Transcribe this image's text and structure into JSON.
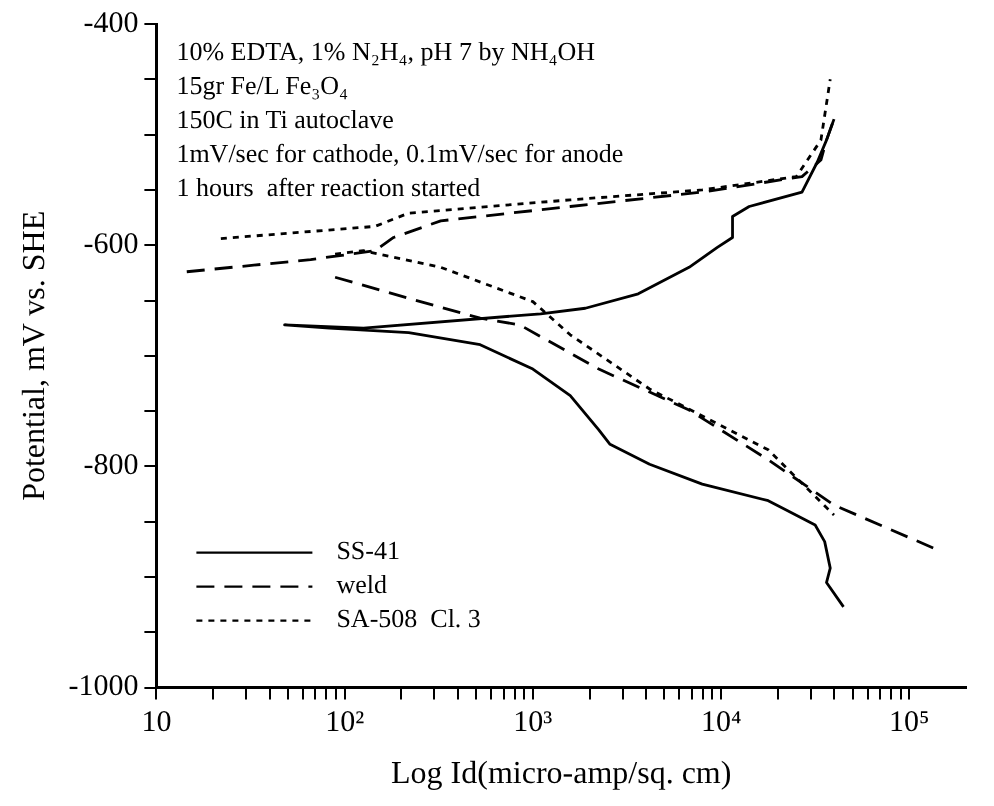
{
  "chart_data": {
    "type": "line",
    "xlabel": "Log Id(micro-amp/sq. cm)",
    "ylabel": "Potential, mV vs. SHE",
    "annotations": [
      "10% EDTA, 1% N₂H₄, pH 7 by NH₄OH",
      "15gr Fe/L Fe₃O₄",
      "150C in Ti autoclave",
      "1mV/sec for cathode, 0.1mV/sec for anode",
      "1 hours  after reaction started"
    ],
    "log": "x",
    "grid": false,
    "legend": "bottom left",
    "marker": "none",
    "xlim": [
      10,
      200000
    ],
    "ylim": [
      -1000,
      -400
    ],
    "xticks": [
      10,
      {
        "value": 20,
        "label": null
      },
      {
        "value": 30,
        "label": null
      },
      {
        "value": 40,
        "label": null
      },
      {
        "value": 50,
        "label": null
      },
      {
        "value": 60,
        "label": null
      },
      {
        "value": 70,
        "label": null
      },
      {
        "value": 80,
        "label": null
      },
      {
        "value": 90,
        "label": null
      },
      {
        "value": 100,
        "label": "10²"
      },
      {
        "value": 200,
        "label": null
      },
      {
        "value": 300,
        "label": null
      },
      {
        "value": 400,
        "label": null
      },
      {
        "value": 500,
        "label": null
      },
      {
        "value": 600,
        "label": null
      },
      {
        "value": 700,
        "label": null
      },
      {
        "value": 800,
        "label": null
      },
      {
        "value": 900,
        "label": null
      },
      {
        "value": 1000,
        "label": "10³"
      },
      {
        "value": 2000,
        "label": null
      },
      {
        "value": 3000,
        "label": null
      },
      {
        "value": 4000,
        "label": null
      },
      {
        "value": 5000,
        "label": null
      },
      {
        "value": 6000,
        "label": null
      },
      {
        "value": 7000,
        "label": null
      },
      {
        "value": 8000,
        "label": null
      },
      {
        "value": 9000,
        "label": null
      },
      {
        "value": 10000,
        "label": "10⁴"
      },
      {
        "value": 20000,
        "label": null
      },
      {
        "value": 30000,
        "label": null
      },
      {
        "value": 40000,
        "label": null
      },
      {
        "value": 50000,
        "label": null
      },
      {
        "value": 60000,
        "label": null
      },
      {
        "value": 70000,
        "label": null
      },
      {
        "value": 80000,
        "label": null
      },
      {
        "value": 90000,
        "label": null
      },
      {
        "value": 100000,
        "label": "10⁵"
      }
    ],
    "yticks": [
      -1000,
      {
        "value": -950,
        "label": null
      },
      {
        "value": -900,
        "label": null
      },
      {
        "value": -850,
        "label": null
      },
      -800,
      {
        "value": -750,
        "label": null
      },
      {
        "value": -700,
        "label": null
      },
      {
        "value": -650,
        "label": null
      },
      -600,
      {
        "value": -550,
        "label": null
      },
      {
        "value": -500,
        "label": null
      },
      {
        "value": -450,
        "label": null
      },
      -400
    ],
    "series": [
      {
        "name": "SS-41",
        "color": "#000000",
        "line_style": "solid",
        "x": [
          44700,
          36300,
          38000,
          35500,
          31600,
          17800,
          7940,
          4170,
          2570,
          2240,
          1580,
          1000,
          525,
          219,
          83,
          48,
          126,
          1100,
          1900,
          3630,
          6760,
          9550,
          11500,
          11500,
          14100,
          26900,
          32400,
          36300,
          39800
        ],
        "values": [
          -927,
          -905,
          -892,
          -868,
          -853,
          -831,
          -816,
          -798,
          -780,
          -767,
          -736,
          -712,
          -690,
          -679,
          -675,
          -672,
          -675,
          -662,
          -657,
          -644,
          -620,
          -602,
          -593,
          -574,
          -565,
          -552,
          -525,
          -505,
          -486
        ]
      },
      {
        "name": "weld",
        "color": "#000000",
        "line_style": "dashed",
        "x": [
          14.5,
          66,
          145,
          182,
          324,
          1580,
          7940,
          26900,
          33900,
          36300,
          39800,
          null,
          89,
          219,
          525,
          851,
          2240,
          6760,
          17800,
          39800,
          135000
        ],
        "values": [
          -624,
          -613,
          -605,
          -593,
          -578,
          -565,
          -552,
          -538,
          -523,
          -505,
          -486,
          null,
          -629,
          -648,
          -666,
          -672,
          -712,
          -749,
          -794,
          -835,
          -874
        ]
      },
      {
        "name": "SA-508  Cl. 3",
        "color": "#000000",
        "line_style": "dotted",
        "x": [
          22,
          145,
          219,
          1580,
          7940,
          25100,
          33900,
          38000,
          null,
          89,
          126,
          324,
          1000,
          1580,
          4170,
          17800,
          39800
        ],
        "values": [
          -594,
          -583,
          -571,
          -559,
          -550,
          -538,
          -505,
          -450,
          null,
          -608,
          -605,
          -620,
          -651,
          -681,
          -730,
          -785,
          -844
        ]
      }
    ]
  }
}
